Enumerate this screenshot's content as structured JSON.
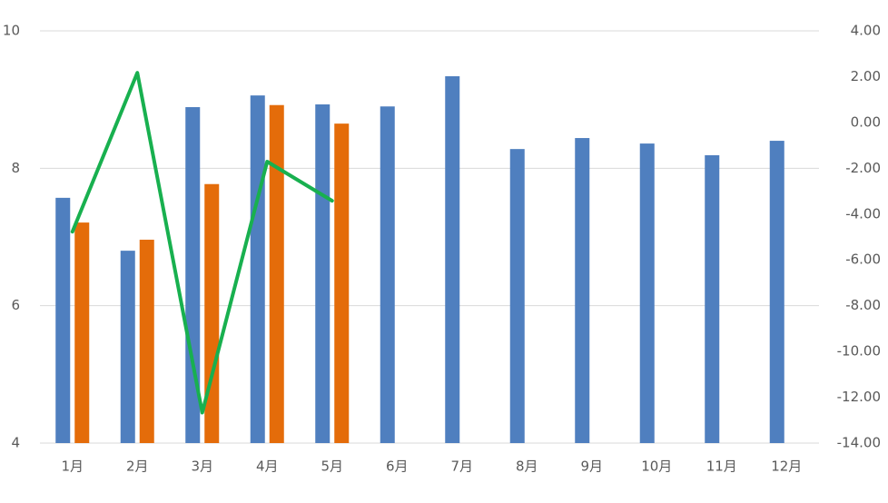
{
  "chart_data": {
    "type": "bar",
    "categories": [
      "1月",
      "2月",
      "3月",
      "4月",
      "5月",
      "6月",
      "7月",
      "8月",
      "9月",
      "10月",
      "11月",
      "12月"
    ],
    "series": [
      {
        "color": "#4f7fbf",
        "values": [
          7.57,
          6.8,
          8.89,
          9.06,
          8.93,
          8.9,
          9.34,
          8.28,
          8.44,
          8.36,
          8.19,
          8.4
        ]
      },
      {
        "color": "#e46c0a",
        "values": [
          7.21,
          6.96,
          7.77,
          8.92,
          8.65,
          null,
          null,
          null,
          null,
          null,
          null,
          null
        ]
      },
      {
        "type": "line",
        "axis": "y2",
        "color": "#18b04f",
        "values": [
          -4.77,
          2.17,
          -12.67,
          -1.71,
          -3.42,
          null,
          null,
          null,
          null,
          null,
          null,
          null
        ]
      }
    ],
    "ylim": [
      4,
      10
    ],
    "yticks": [
      4,
      6,
      8,
      10
    ],
    "y2lim": [
      -14,
      4
    ],
    "y2ticks": [
      {
        "value": -14,
        "label": "-14.00"
      },
      {
        "value": -12,
        "label": "-12.00"
      },
      {
        "value": -10,
        "label": "-10.00"
      },
      {
        "value": -8,
        "label": "-8.00"
      },
      {
        "value": -6,
        "label": "-6.00"
      },
      {
        "value": -4,
        "label": "-4.00"
      },
      {
        "value": -2,
        "label": "-2.00"
      },
      {
        "value": 0,
        "label": "0.00"
      },
      {
        "value": 2,
        "label": "2.00"
      },
      {
        "value": 4,
        "label": "4.00"
      }
    ],
    "grid": true
  }
}
